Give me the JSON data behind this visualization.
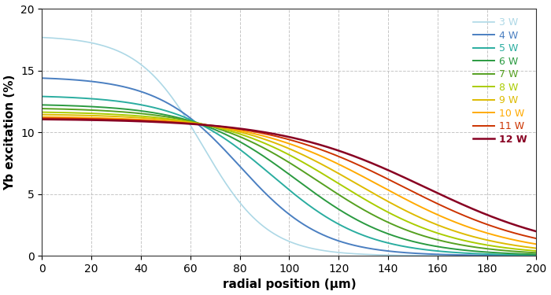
{
  "title": "",
  "xlabel": "radial position (μm)",
  "ylabel": "Yb excitation (%)",
  "xlim": [
    0,
    200
  ],
  "ylim": [
    0,
    20
  ],
  "yticks": [
    0,
    5,
    10,
    15,
    20
  ],
  "xticks": [
    0,
    20,
    40,
    60,
    80,
    100,
    120,
    140,
    160,
    180,
    200
  ],
  "series": [
    {
      "label": "3 W",
      "color": "#add8e6",
      "lw": 1.2,
      "y0": 17.8,
      "ymin": 0.0,
      "r_half": 65.0,
      "steepness": 0.038
    },
    {
      "label": "4 W",
      "color": "#4a7fc1",
      "lw": 1.4,
      "y0": 14.5,
      "ymin": 0.0,
      "r_half": 80.0,
      "steepness": 0.03
    },
    {
      "label": "5 W",
      "color": "#2aada0",
      "lw": 1.4,
      "y0": 13.0,
      "ymin": 0.0,
      "r_half": 93.0,
      "steepness": 0.026
    },
    {
      "label": "6 W",
      "color": "#2a9a40",
      "lw": 1.4,
      "y0": 12.3,
      "ymin": 0.0,
      "r_half": 103.0,
      "steepness": 0.024
    },
    {
      "label": "7 W",
      "color": "#55a020",
      "lw": 1.4,
      "y0": 12.0,
      "ymin": 0.0,
      "r_half": 112.0,
      "steepness": 0.022
    },
    {
      "label": "8 W",
      "color": "#aacc00",
      "lw": 1.4,
      "y0": 11.7,
      "ymin": 0.0,
      "r_half": 120.0,
      "steepness": 0.021
    },
    {
      "label": "9 W",
      "color": "#ddbb00",
      "lw": 1.4,
      "y0": 11.5,
      "ymin": 0.0,
      "r_half": 128.0,
      "steepness": 0.02
    },
    {
      "label": "10 W",
      "color": "#ffaa00",
      "lw": 1.4,
      "y0": 11.3,
      "ymin": 0.0,
      "r_half": 137.0,
      "steepness": 0.019
    },
    {
      "label": "11 W",
      "color": "#cc3300",
      "lw": 1.4,
      "y0": 11.2,
      "ymin": 0.0,
      "r_half": 146.0,
      "steepness": 0.018
    },
    {
      "label": "12 W",
      "color": "#880022",
      "lw": 1.8,
      "y0": 11.1,
      "ymin": 0.0,
      "r_half": 155.0,
      "steepness": 0.017
    }
  ],
  "grid_color": "#c0c0c0",
  "bg_color": "#ffffff",
  "legend_fontsize": 9,
  "axis_label_fontsize": 11
}
